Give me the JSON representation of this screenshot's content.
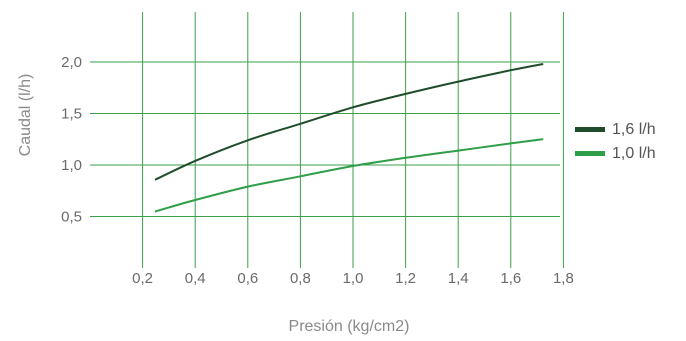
{
  "chart_data": {
    "type": "line",
    "title": "",
    "xlabel": "Presión (kg/cm2)",
    "ylabel": "Caudal (l/h)",
    "xlim": [
      0.0,
      1.8
    ],
    "ylim": [
      0.0,
      2.5
    ],
    "x_ticks": [
      0.2,
      0.4,
      0.6,
      0.8,
      1.0,
      1.2,
      1.4,
      1.6,
      1.8
    ],
    "x_tick_labels": [
      "0,2",
      "0,4",
      "0,6",
      "0,8",
      "1,0",
      "1,2",
      "1,4",
      "1,6",
      "1,8"
    ],
    "y_ticks": [
      0.5,
      1.0,
      1.5,
      2.0
    ],
    "y_tick_labels": [
      "0,5",
      "1,0",
      "1,5",
      "2,0"
    ],
    "grid": true,
    "grid_color": "#3aa14a",
    "legend_position": "right",
    "series": [
      {
        "name": "1,6 l/h",
        "color": "#1f4d2b",
        "x": [
          0.25,
          0.4,
          0.6,
          0.8,
          1.0,
          1.2,
          1.4,
          1.6,
          1.72
        ],
        "y": [
          0.86,
          1.04,
          1.24,
          1.4,
          1.56,
          1.69,
          1.81,
          1.92,
          1.98
        ]
      },
      {
        "name": "1,0 l/h",
        "color": "#2f9e48",
        "x": [
          0.25,
          0.4,
          0.6,
          0.8,
          1.0,
          1.2,
          1.4,
          1.6,
          1.72
        ],
        "y": [
          0.55,
          0.66,
          0.79,
          0.89,
          0.99,
          1.07,
          1.14,
          1.21,
          1.25
        ]
      }
    ]
  }
}
